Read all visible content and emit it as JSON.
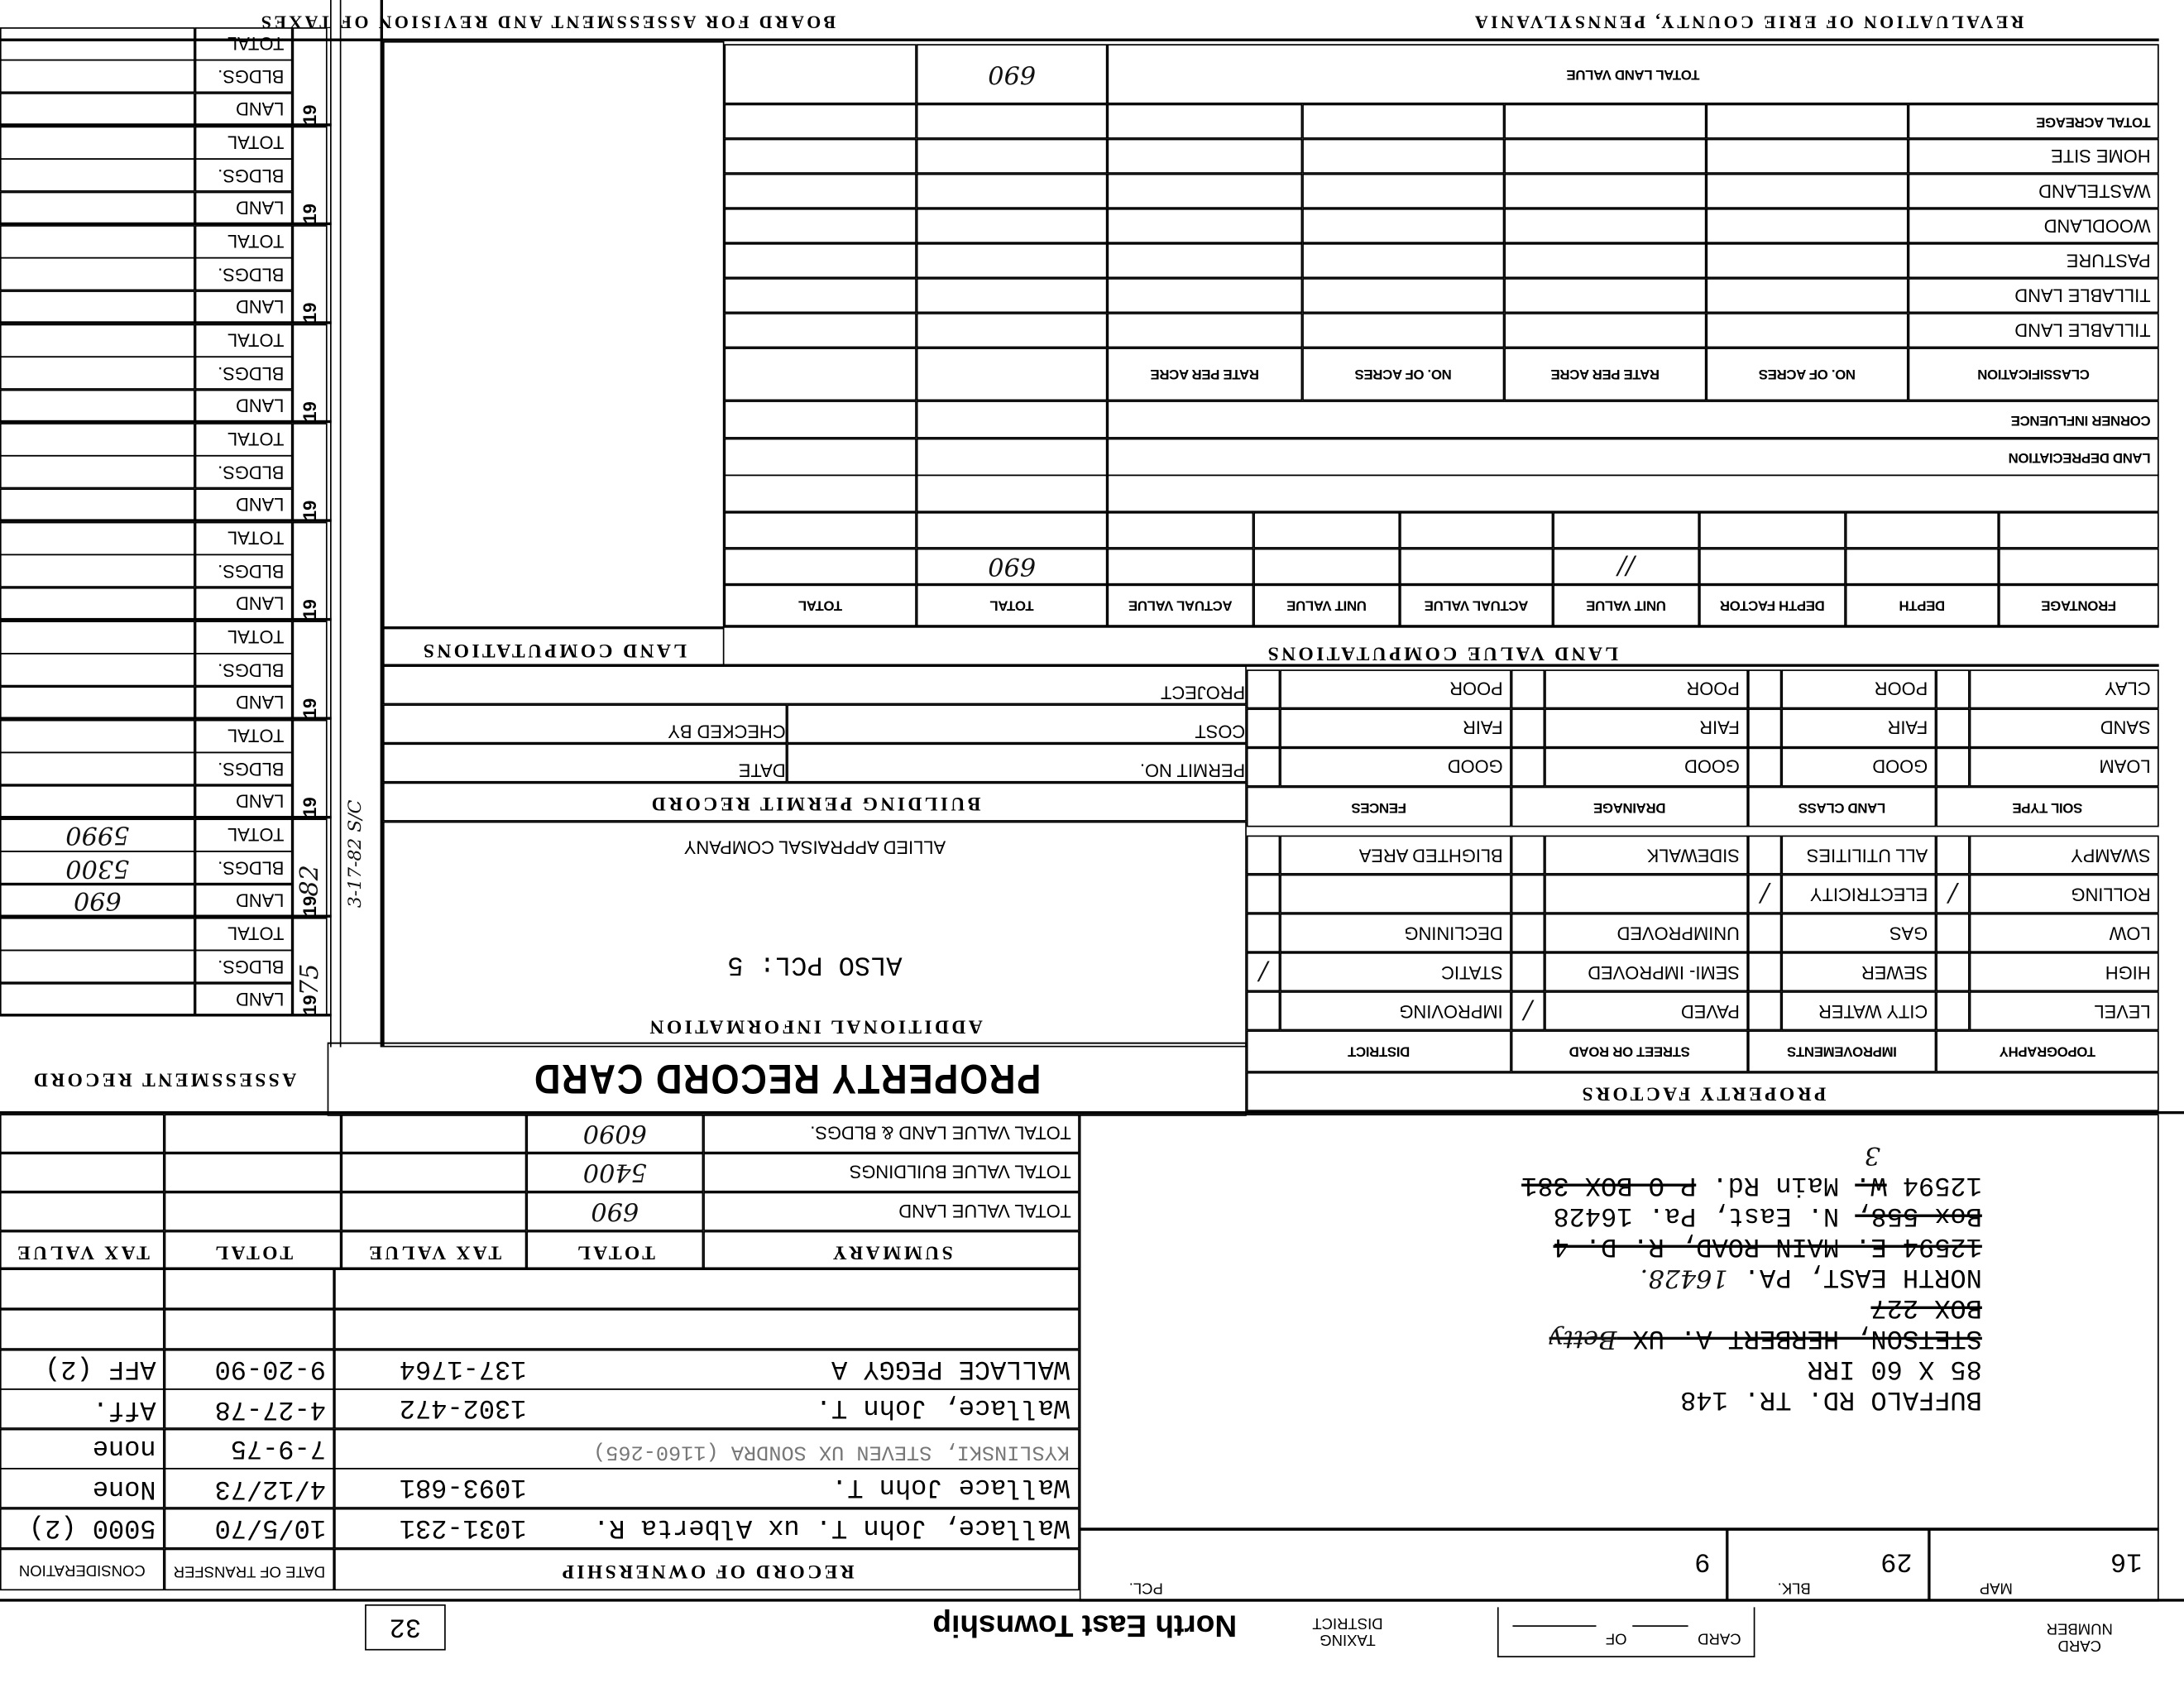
{
  "header": {
    "card_number_label": "CARD NUMBER",
    "card_label": "CARD",
    "of_label": "OF",
    "taxing_district_label": "TAXING DISTRICT",
    "taxing_district": "North East Township",
    "box_number": "32"
  },
  "parcel": {
    "map_label": "MAP",
    "map": "16",
    "blk_label": "BLK.",
    "blk": "29",
    "pcl_label": "PCL.",
    "pcl": "9"
  },
  "ownership": {
    "title": "RECORD OF OWNERSHIP",
    "date_label": "DATE OF TRANSFER",
    "consideration_label": "CONSIDERATION",
    "rows": [
      {
        "owner": "Wallace, John T. ux Alberta R.",
        "deed": "1031-231",
        "date": "10/5/70",
        "consideration": "5000 (2)",
        "faint": false
      },
      {
        "owner": "Wallace John T.",
        "deed": "1093-681",
        "date": "4/12/73",
        "consideration": "None",
        "faint": false
      },
      {
        "owner": "KYSLINSKI, STEVEN UX SONDRA (1160-265)",
        "deed": "",
        "date": "7-9-75",
        "consideration": "none",
        "faint": true
      },
      {
        "owner": "Wallace, John T.",
        "deed": "1302-472",
        "date": "4-27-78",
        "consideration": "Aff.",
        "faint": false
      },
      {
        "owner": "WALLACE PEGGY A",
        "deed": "137-1764",
        "date": "9-20-90",
        "consideration": "AFF (2)",
        "faint": false
      },
      {
        "owner": "",
        "deed": "",
        "date": "",
        "consideration": "",
        "faint": false
      },
      {
        "owner": "",
        "deed": "",
        "date": "",
        "consideration": "",
        "faint": false
      }
    ]
  },
  "address": {
    "lines": [
      {
        "segments": [
          {
            "text": "BUFFALO RD. TR. 148",
            "struck": false
          }
        ]
      },
      {
        "segments": [
          {
            "text": "85 X 60 IRR",
            "struck": false
          }
        ]
      },
      {
        "segments": [
          {
            "text": "STETSON, HERBERT A. UX ",
            "struck": true
          },
          {
            "text": "Betty",
            "struck": true,
            "handwritten": true
          }
        ]
      },
      {
        "segments": [
          {
            "text": "BOX 227",
            "struck": true
          }
        ]
      },
      {
        "segments": [
          {
            "text": "NORTH EAST, PA. ",
            "struck": false
          },
          {
            "text": "16428.",
            "struck": false,
            "handwritten": true
          }
        ]
      },
      {
        "segments": [
          {
            "text": "12594 E. MAIN ROAD, R. D. 4",
            "struck": true
          }
        ]
      },
      {
        "segments": [
          {
            "text": "Box 558,",
            "struck": true
          },
          {
            "text": " N. East, Pa. 16428",
            "struck": false
          }
        ]
      },
      {
        "segments": [
          {
            "text": "12594 ",
            "struck": false
          },
          {
            "text": "W.",
            "struck": true
          },
          {
            "text": " Main Rd.  ",
            "struck": false
          },
          {
            "text": "P O BOX 381",
            "struck": true
          }
        ]
      }
    ],
    "correction": "3"
  },
  "summary": {
    "headers": [
      "SUMMARY",
      "TOTAL",
      "TAX VALUE",
      "TOTAL",
      "TAX VALUE"
    ],
    "rows": [
      {
        "label": "TOTAL VALUE LAND",
        "total": "690"
      },
      {
        "label": "TOTAL VALUE BUILDINGS",
        "total": "5400"
      },
      {
        "label": "TOTAL VALUE LAND & BLDGS.",
        "total": "6090"
      }
    ]
  },
  "card_title": "PROPERTY RECORD CARD",
  "additional_info": {
    "title": "ADDITIONAL INFORMATION",
    "note": "ALSO PCL: 5",
    "appraiser": "ALLIED APPRAISAL COMPANY"
  },
  "building_permit": {
    "title": "BUILDING PERMIT RECORD",
    "permit_no_label": "PERMIT NO.",
    "date_label": "DATE",
    "cost_label": "COST",
    "checked_by_label": "CHECKED BY",
    "project_label": "PROJECT"
  },
  "property_factors": {
    "title": "PROPERTY FACTORS",
    "headers": [
      "TOPOGRAPHY",
      "IMPROVEMENTS",
      "STREET OR ROAD",
      "DISTRICT"
    ],
    "rows": [
      [
        {
          "label": "LEVEL",
          "checked": false
        },
        {
          "label": "CITY WATER",
          "checked": false
        },
        {
          "label": "PAVED",
          "checked": true
        },
        {
          "label": "IMPROVING",
          "checked": false
        }
      ],
      [
        {
          "label": "HIGH",
          "checked": false
        },
        {
          "label": "SEWER",
          "checked": false
        },
        {
          "label": "SEMI- IMPROVED",
          "checked": false
        },
        {
          "label": "STATIC",
          "checked": true
        }
      ],
      [
        {
          "label": "LOW",
          "checked": false
        },
        {
          "label": "GAS",
          "checked": false
        },
        {
          "label": "UNIMPROVED",
          "checked": false
        },
        {
          "label": "DECLINING",
          "checked": false
        }
      ],
      [
        {
          "label": "ROLLING",
          "checked": true
        },
        {
          "label": "ELECTRICITY",
          "checked": true
        },
        {
          "label": "",
          "checked": false
        },
        {
          "label": "",
          "checked": false
        }
      ],
      [
        {
          "label": "SWAMPY",
          "checked": false
        },
        {
          "label": "ALL UTILITIES",
          "checked": false
        },
        {
          "label": "SIDEWALK",
          "checked": false
        },
        {
          "label": "BLIGHTED AREA",
          "checked": false
        }
      ]
    ],
    "soil_headers": [
      "SOIL TYPE",
      "LAND CLASS",
      "DRAINAGE",
      "FENCES"
    ],
    "soil_rows": [
      [
        "LOAM",
        "GOOD",
        "GOOD",
        "GOOD"
      ],
      [
        "SAND",
        "FAIR",
        "FAIR",
        "FAIR"
      ],
      [
        "CLAY",
        "POOR",
        "POOR",
        "POOR"
      ]
    ],
    "check_mark": "/"
  },
  "land_value": {
    "title": "LAND VALUE COMPUTATIONS",
    "headers": [
      "FRONTAGE",
      "DEPTH",
      "DEPTH FACTOR",
      "UNIT VALUE",
      "ACTUAL VALUE",
      "UNIT VALUE",
      "ACTUAL VALUE",
      "TOTAL",
      "TOTAL"
    ],
    "rows": [
      [
        "",
        "",
        "",
        "//",
        "",
        "",
        "",
        "690",
        ""
      ],
      [
        "",
        "",
        "",
        "",
        "",
        "",
        "",
        "",
        ""
      ]
    ],
    "land_depreciation_label": "LAND DEPRECIATION",
    "corner_influence_label": "CORNER INFLUENCE",
    "classification_headers": [
      "CLASSIFICATION",
      "NO. OF ACRES",
      "RATE PER ACRE",
      "NO. OF ACRES",
      "RATE PER ACRE"
    ],
    "classification_rows": [
      "TILLABLE LAND",
      "TILLABLE LAND",
      "PASTURE",
      "WOODLAND",
      "WASTELAND",
      "HOME SITE",
      "TOTAL ACREAGE"
    ],
    "total_land_value_label": "TOTAL LAND VALUE",
    "total_land_value": "690"
  },
  "land_computations": {
    "title": "LAND COMPUTATIONS"
  },
  "assessment": {
    "title": "ASSESSMENT RECORD",
    "year_prefix": "19",
    "labels": [
      "LAND",
      "BLDGS.",
      "TOTAL"
    ],
    "blocks": [
      {
        "year": "75",
        "land": "",
        "bldgs": "",
        "total": ""
      },
      {
        "year": "82",
        "land": "690",
        "bldgs": "5300",
        "total": "5990"
      },
      {
        "year": "",
        "land": "",
        "bldgs": "",
        "total": ""
      },
      {
        "year": "",
        "land": "",
        "bldgs": "",
        "total": ""
      },
      {
        "year": "",
        "land": "",
        "bldgs": "",
        "total": ""
      },
      {
        "year": "",
        "land": "",
        "bldgs": "",
        "total": ""
      },
      {
        "year": "",
        "land": "",
        "bldgs": "",
        "total": ""
      },
      {
        "year": "",
        "land": "",
        "bldgs": "",
        "total": ""
      },
      {
        "year": "",
        "land": "",
        "bldgs": "",
        "total": ""
      },
      {
        "year": "",
        "land": "",
        "bldgs": "",
        "total": ""
      }
    ],
    "side_note": "3-17-82 S/C"
  },
  "footer": {
    "left": "REVALUATION OF ERIE COUNTY, PENNSYLVANIA",
    "right": "BOARD FOR ASSESSMENT AND REVISION OF TAXES"
  }
}
